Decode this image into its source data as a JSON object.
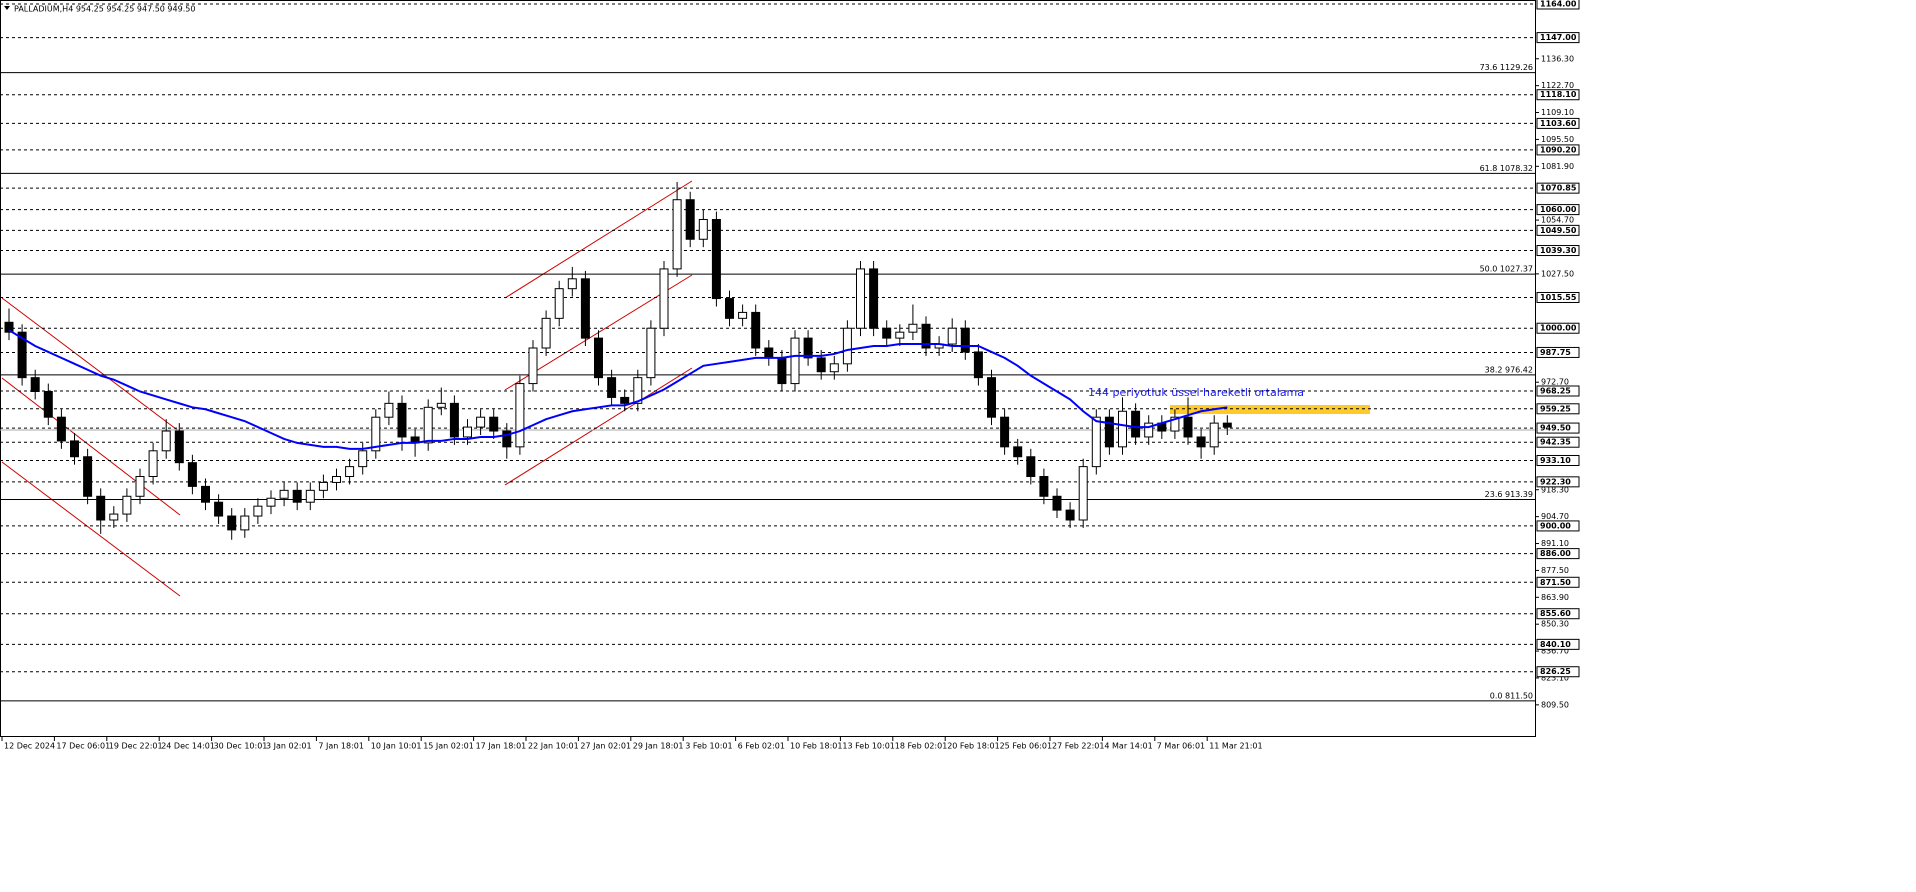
{
  "chart_data": {
    "type": "candlestick",
    "title": "PALLADIUM,H4  954.25 954.25 947.50 949.50",
    "annotation": "144 periyotluk üssel hareketli ortalama",
    "ylim": [
      793.24,
      1166.02
    ],
    "categories": [
      "12 Dec 2024",
      null,
      null,
      null,
      "17 Dec 06:01",
      null,
      null,
      null,
      "19 Dec 22:01",
      null,
      null,
      null,
      "24 Dec 14:01",
      null,
      null,
      null,
      "30 Dec 10:01",
      null,
      null,
      null,
      "3 Jan 02:01",
      null,
      null,
      null,
      "7 Jan 18:01",
      null,
      null,
      null,
      "10 Jan 10:01",
      null,
      null,
      null,
      "15 Jan 02:01",
      null,
      null,
      null,
      "17 Jan 18:01",
      null,
      null,
      null,
      "22 Jan 10:01",
      null,
      null,
      null,
      "27 Jan 02:01",
      null,
      null,
      null,
      "29 Jan 18:01",
      null,
      null,
      null,
      "3 Feb 10:01",
      null,
      null,
      null,
      "6 Feb 02:01",
      null,
      null,
      null,
      "10 Feb 18:01",
      null,
      null,
      null,
      "13 Feb 10:01",
      null,
      null,
      null,
      "18 Feb 02:01",
      null,
      null,
      null,
      "20 Feb 18:01",
      null,
      null,
      null,
      "25 Feb 06:01",
      null,
      null,
      null,
      "27 Feb 22:01",
      null,
      null,
      null,
      "4 Mar 14:01",
      null,
      null,
      null,
      "7 Mar 06:01",
      null,
      null,
      null,
      "11 Mar 21:01",
      null
    ],
    "open": [
      1003,
      998,
      975,
      968,
      955,
      943,
      935,
      915,
      903,
      906,
      915,
      925,
      938,
      948,
      932,
      920,
      912,
      905,
      898,
      905,
      910,
      914,
      918,
      912,
      918,
      922,
      925,
      930,
      938,
      955,
      962,
      945,
      942,
      960,
      962,
      945,
      950,
      955,
      948,
      940,
      972,
      990,
      1005,
      1020,
      1025,
      995,
      975,
      965,
      962,
      975,
      1000,
      1030,
      1065,
      1045,
      1055,
      1015,
      1005,
      1008,
      990,
      985,
      972,
      995,
      985,
      978,
      982,
      1000,
      1030,
      1000,
      995,
      998,
      1002,
      990,
      992,
      1000,
      988,
      975,
      955,
      940,
      935,
      925,
      915,
      908,
      903,
      930,
      955,
      940,
      958,
      945,
      952,
      948,
      955,
      945,
      940,
      952
    ],
    "high": [
      1010,
      1002,
      979,
      972,
      959,
      947,
      939,
      919,
      910,
      919,
      929,
      942,
      954,
      952,
      936,
      924,
      916,
      909,
      909,
      914,
      918,
      922,
      922,
      922,
      926,
      929,
      934,
      942,
      959,
      968,
      966,
      949,
      964,
      970,
      966,
      954,
      959,
      959,
      952,
      976,
      994,
      1009,
      1024,
      1031,
      1029,
      999,
      979,
      969,
      979,
      1004,
      1034,
      1074,
      1069,
      1060,
      1059,
      1019,
      1012,
      1012,
      994,
      989,
      999,
      999,
      989,
      986,
      1004,
      1034,
      1034,
      1004,
      1002,
      1012,
      1006,
      996,
      1005,
      1004,
      992,
      979,
      959,
      944,
      939,
      929,
      919,
      912,
      934,
      959,
      959,
      965,
      962,
      956,
      956,
      959,
      965,
      949,
      956,
      956
    ],
    "low": [
      994,
      971,
      964,
      951,
      939,
      931,
      911,
      896,
      899,
      902,
      911,
      921,
      934,
      928,
      916,
      908,
      901,
      893,
      894,
      901,
      906,
      910,
      908,
      908,
      914,
      918,
      921,
      926,
      934,
      951,
      938,
      935,
      938,
      956,
      941,
      941,
      946,
      944,
      934,
      936,
      968,
      986,
      1001,
      1016,
      991,
      971,
      961,
      958,
      958,
      971,
      996,
      1026,
      1041,
      1041,
      1011,
      1001,
      1001,
      986,
      981,
      968,
      968,
      981,
      974,
      974,
      978,
      996,
      996,
      991,
      991,
      994,
      986,
      986,
      988,
      984,
      971,
      951,
      936,
      931,
      921,
      911,
      904,
      899,
      899,
      926,
      936,
      936,
      941,
      941,
      944,
      944,
      941,
      934,
      936,
      946
    ],
    "close": [
      998,
      975,
      968,
      955,
      943,
      935,
      915,
      903,
      906,
      915,
      925,
      938,
      948,
      932,
      920,
      912,
      905,
      898,
      905,
      910,
      914,
      918,
      912,
      918,
      922,
      925,
      930,
      938,
      955,
      962,
      945,
      942,
      960,
      962,
      945,
      950,
      955,
      948,
      940,
      972,
      990,
      1005,
      1020,
      1025,
      995,
      975,
      965,
      962,
      975,
      1000,
      1030,
      1065,
      1045,
      1055,
      1015,
      1005,
      1008,
      990,
      985,
      972,
      995,
      985,
      978,
      982,
      1000,
      1030,
      1000,
      995,
      998,
      1002,
      990,
      992,
      1000,
      988,
      975,
      955,
      940,
      935,
      925,
      915,
      908,
      903,
      930,
      955,
      940,
      958,
      945,
      952,
      948,
      955,
      945,
      940,
      952,
      950
    ],
    "ema": {
      "color": "#0000ff",
      "values": [
        999,
        995,
        991,
        988,
        985,
        982,
        979,
        976,
        974,
        971,
        968,
        966,
        964,
        962,
        960,
        959,
        957,
        955,
        953,
        950,
        947,
        944,
        942,
        941,
        940,
        940,
        939,
        939,
        940,
        941,
        942,
        942,
        943,
        943,
        944,
        944,
        945,
        945,
        946,
        948,
        951,
        954,
        956,
        958,
        959,
        960,
        961,
        961,
        963,
        966,
        969,
        973,
        977,
        981,
        982,
        983,
        984,
        985,
        985,
        985,
        986,
        986,
        986,
        987,
        989,
        990,
        991,
        991,
        992,
        992,
        992,
        992,
        991,
        991,
        991,
        988,
        985,
        981,
        976,
        972,
        968,
        964,
        958,
        953,
        952,
        951,
        950,
        950,
        952,
        954,
        956,
        958,
        959,
        960
      ]
    },
    "levels": [
      {
        "value": 1164.0,
        "label": "1164.00"
      },
      {
        "value": 1147.0,
        "label": "1147.00"
      },
      {
        "value": 1118.1,
        "label": "1118.10"
      },
      {
        "value": 1103.6,
        "label": "1103.60"
      },
      {
        "value": 1090.2,
        "label": "1090.20"
      },
      {
        "value": 1070.85,
        "label": "1070.85"
      },
      {
        "value": 1060.0,
        "label": "1060.00"
      },
      {
        "value": 1049.5,
        "label": "1049.50"
      },
      {
        "value": 1039.3,
        "label": "1039.30"
      },
      {
        "value": 1015.55,
        "label": "1015.55"
      },
      {
        "value": 1000.0,
        "label": "1000.00"
      },
      {
        "value": 987.75,
        "label": "987.75"
      },
      {
        "value": 968.25,
        "label": "968.25"
      },
      {
        "value": 959.25,
        "label": "959.25"
      },
      {
        "value": 949.5,
        "label": "949.50"
      },
      {
        "value": 942.35,
        "label": "942.35"
      },
      {
        "value": 933.1,
        "label": "933.10"
      },
      {
        "value": 922.3,
        "label": "922.30"
      },
      {
        "value": 900.0,
        "label": "900.00"
      },
      {
        "value": 886.0,
        "label": "886.00"
      },
      {
        "value": 871.5,
        "label": "871.50"
      },
      {
        "value": 855.6,
        "label": "855.60"
      },
      {
        "value": 840.1,
        "label": "840.10"
      },
      {
        "value": 826.25,
        "label": "826.25"
      }
    ],
    "yticks": [
      {
        "value": 1136.3,
        "label": "1136.30"
      },
      {
        "value": 1122.7,
        "label": "1122.70"
      },
      {
        "value": 1109.1,
        "label": "1109.10"
      },
      {
        "value": 1095.5,
        "label": "1095.50"
      },
      {
        "value": 1081.9,
        "label": "1081.90"
      },
      {
        "value": 1054.7,
        "label": "1054.70"
      },
      {
        "value": 1027.5,
        "label": "1027.50"
      },
      {
        "value": 972.7,
        "label": "972.70"
      },
      {
        "value": 918.3,
        "label": "918.30"
      },
      {
        "value": 904.7,
        "label": "904.70"
      },
      {
        "value": 891.1,
        "label": "891.10"
      },
      {
        "value": 877.5,
        "label": "877.50"
      },
      {
        "value": 863.9,
        "label": "863.90"
      },
      {
        "value": 850.3,
        "label": "850.30"
      },
      {
        "value": 836.7,
        "label": "836.70"
      },
      {
        "value": 823.1,
        "label": "823.10"
      },
      {
        "value": 809.5,
        "label": "809.50"
      }
    ],
    "fib": [
      {
        "value": 1129.26,
        "label": "73.6 1129.26"
      },
      {
        "value": 1078.32,
        "label": "61.8 1078.32"
      },
      {
        "value": 1027.37,
        "label": "50.0 1027.37"
      },
      {
        "value": 976.42,
        "label": "38.2 976.42"
      },
      {
        "value": 913.39,
        "label": "23.6 913.39"
      },
      {
        "value": 811.5,
        "label": "0.0 811.50"
      }
    ]
  }
}
